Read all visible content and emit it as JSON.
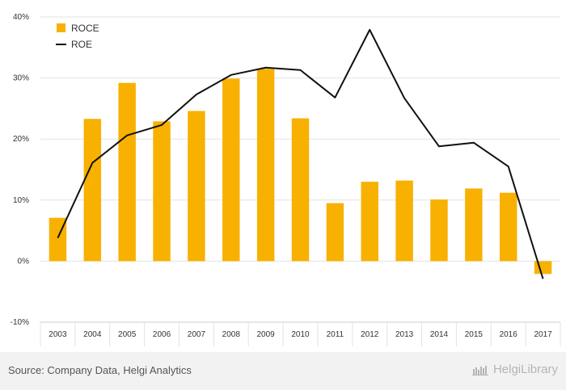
{
  "chart_data": {
    "type": "bar",
    "categories": [
      "2003",
      "2004",
      "2005",
      "2006",
      "2007",
      "2008",
      "2009",
      "2010",
      "2011",
      "2012",
      "2013",
      "2014",
      "2015",
      "2016",
      "2017"
    ],
    "series": [
      {
        "name": "ROCE",
        "type": "bar",
        "color": "#f8b100",
        "values": [
          7.1,
          23.3,
          29.2,
          22.9,
          24.6,
          29.9,
          31.5,
          23.4,
          9.5,
          13.0,
          13.2,
          10.1,
          11.9,
          11.2,
          -2.1
        ]
      },
      {
        "name": "ROE",
        "type": "line",
        "color": "#111111",
        "values": [
          3.8,
          16.1,
          20.6,
          22.3,
          27.3,
          30.5,
          31.7,
          31.3,
          26.8,
          37.9,
          26.7,
          18.8,
          19.4,
          15.5,
          -2.9
        ]
      }
    ],
    "yticks": [
      "40%",
      "30%",
      "20%",
      "10%",
      "0%",
      "-10%"
    ],
    "ylim": [
      -10,
      40
    ],
    "grid": true,
    "legend_position": "top-left"
  },
  "footer": {
    "source": "Source: Company Data, Helgi Analytics",
    "brand": "HelgiLibrary",
    "brand_icon": "helgi-library-icon"
  }
}
